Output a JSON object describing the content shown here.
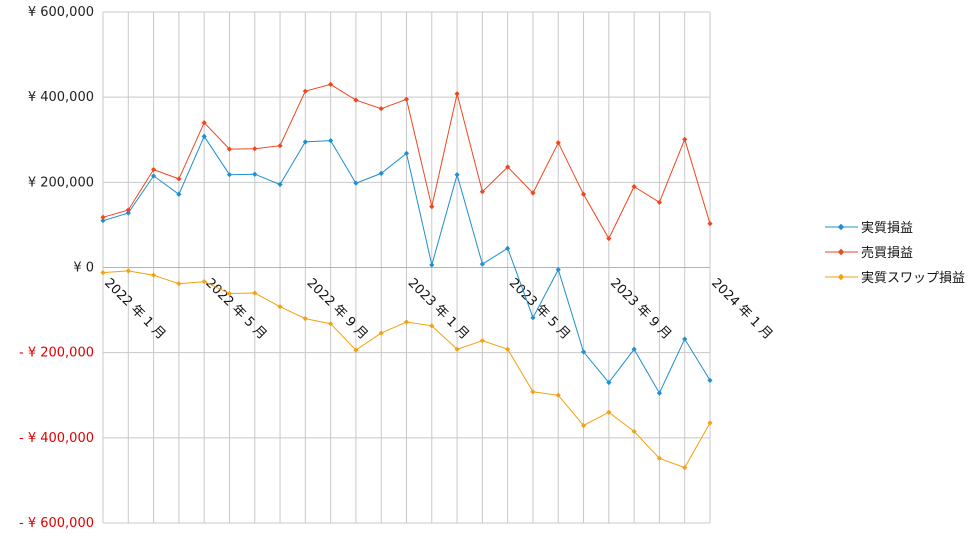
{
  "chart_data": {
    "type": "line",
    "y_tick_labels": [
      {
        "value": 600000,
        "label": "¥ 600,000",
        "negative": false
      },
      {
        "value": 400000,
        "label": "¥ 400,000",
        "negative": false
      },
      {
        "value": 200000,
        "label": "¥ 200,000",
        "negative": false
      },
      {
        "value": 0,
        "label": "¥ 0",
        "negative": false
      },
      {
        "value": -200000,
        "label": "- ¥ 200,000",
        "negative": true
      },
      {
        "value": -400000,
        "label": "- ¥ 400,000",
        "negative": true
      },
      {
        "value": -600000,
        "label": "- ¥ 600,000",
        "negative": true
      }
    ],
    "ylim": [
      -600000,
      600000
    ],
    "x": [
      "2022-01",
      "2022-02",
      "2022-03",
      "2022-04",
      "2022-05",
      "2022-06",
      "2022-07",
      "2022-08",
      "2022-09",
      "2022-10",
      "2022-11",
      "2022-12",
      "2023-01",
      "2023-02",
      "2023-03",
      "2023-04",
      "2023-05",
      "2023-06",
      "2023-07",
      "2023-08",
      "2023-09",
      "2023-10",
      "2023-11",
      "2023-12",
      "2024-01"
    ],
    "x_tick_labels": [
      {
        "index": 0,
        "label": "2022 年 1 月"
      },
      {
        "index": 4,
        "label": "2022 年 5 月"
      },
      {
        "index": 8,
        "label": "2022 年 9 月"
      },
      {
        "index": 12,
        "label": "2023 年 1 月"
      },
      {
        "index": 16,
        "label": "2023 年 5 月"
      },
      {
        "index": 20,
        "label": "2023 年 9 月"
      },
      {
        "index": 24,
        "label": "2024 年 1 月"
      }
    ],
    "grid": true,
    "legend_position": "right",
    "series": [
      {
        "name": "実質損益",
        "color": "#1f8fd0",
        "values": [
          110000,
          128000,
          215000,
          172000,
          308000,
          218000,
          219000,
          195000,
          295000,
          298000,
          198000,
          221000,
          268000,
          6000,
          218000,
          8000,
          45000,
          -118000,
          -5000,
          -198000,
          -270000,
          -192000,
          -295000,
          -168000,
          -265000
        ]
      },
      {
        "name": "売買損益",
        "color": "#f0461e",
        "values": [
          118000,
          135000,
          230000,
          208000,
          340000,
          278000,
          279000,
          286000,
          414000,
          430000,
          393000,
          373000,
          395000,
          143000,
          408000,
          178000,
          236000,
          175000,
          293000,
          172000,
          68000,
          190000,
          153000,
          301000,
          103000
        ]
      },
      {
        "name": "実質スワップ損益",
        "color": "#f5a00e",
        "values": [
          -12000,
          -8000,
          -18000,
          -38000,
          -33000,
          -61000,
          -60000,
          -92000,
          -120000,
          -132000,
          -194000,
          -154000,
          -128000,
          -137000,
          -192000,
          -172000,
          -192000,
          -292000,
          -300000,
          -371000,
          -340000,
          -385000,
          -448000,
          -470000,
          -365000
        ]
      }
    ]
  }
}
